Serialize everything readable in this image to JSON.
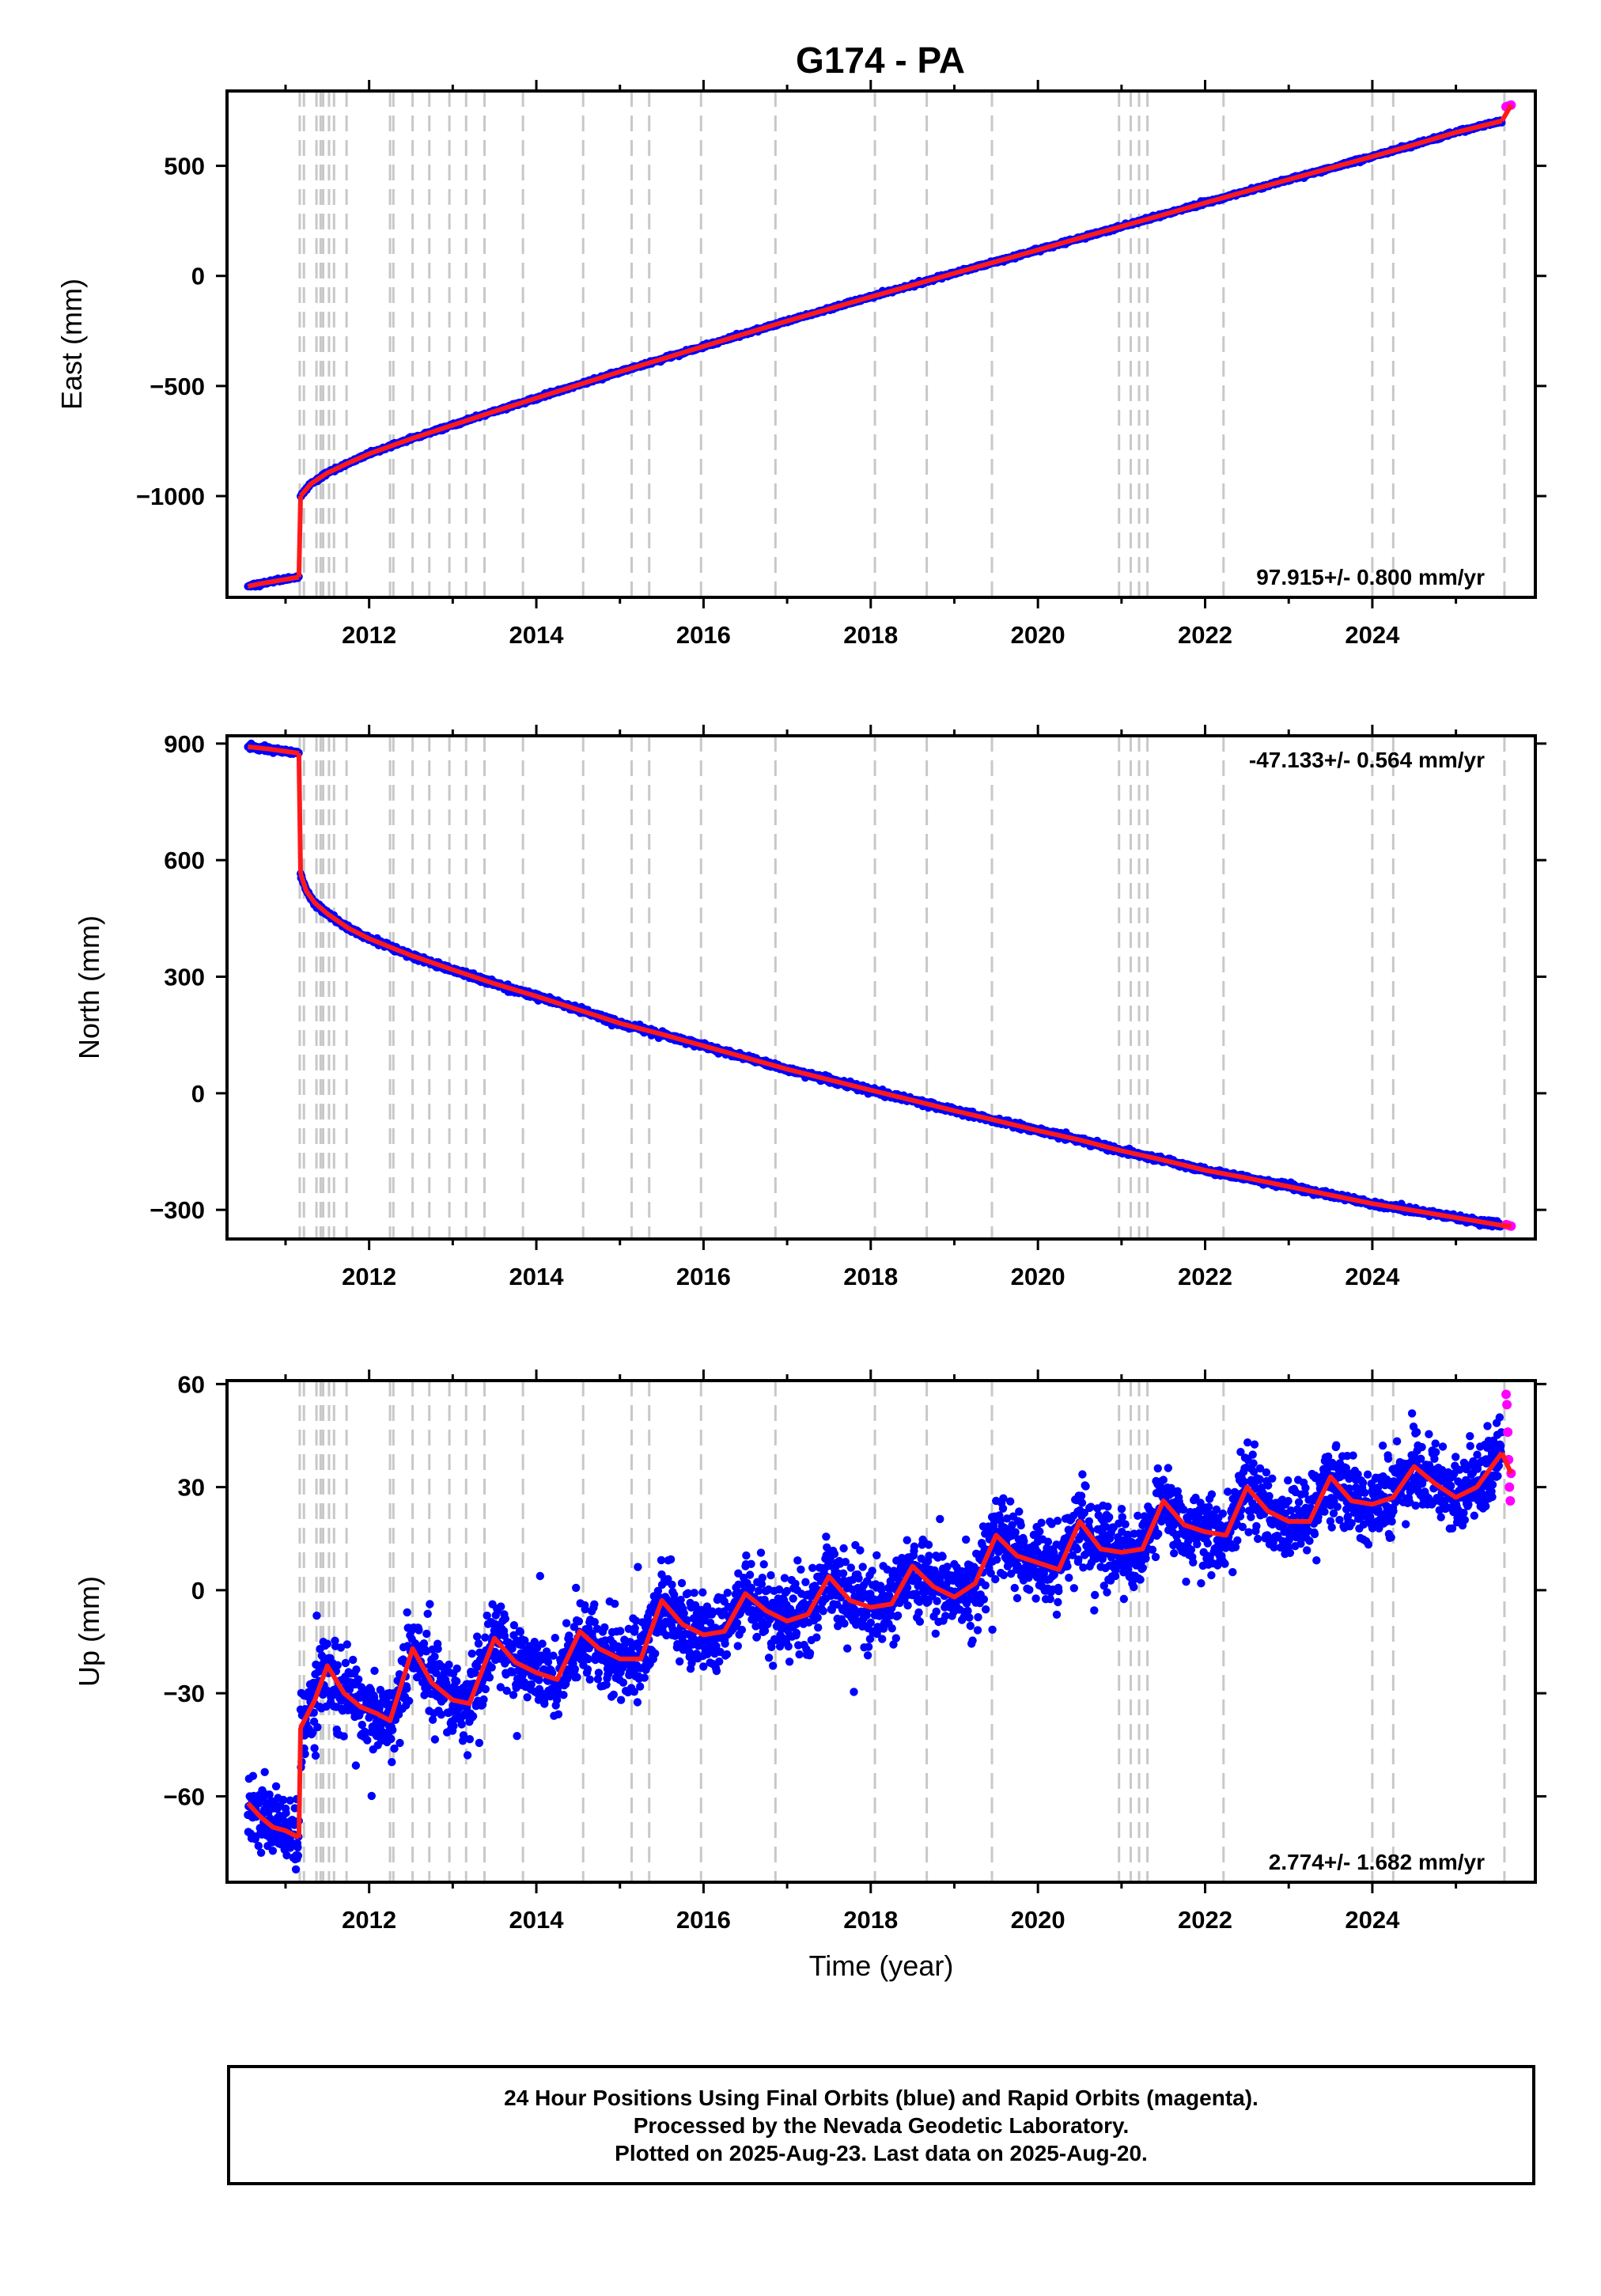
{
  "title": "G174 - PA",
  "colors": {
    "final_orbits": "#0000ff",
    "rapid_orbits": "#ff00ff",
    "model": "#ff1a1a",
    "event_lines": "#c8c8c8",
    "frame": "#000000"
  },
  "event_years": [
    2011.17,
    2011.22,
    2011.37,
    2011.42,
    2011.45,
    2011.52,
    2011.58,
    2011.73,
    2012.25,
    2012.29,
    2012.52,
    2012.72,
    2012.96,
    2013.16,
    2013.38,
    2013.84,
    2014.56,
    2015.14,
    2015.35,
    2015.97,
    2016.86,
    2018.05,
    2018.67,
    2019.45,
    2020.97,
    2021.11,
    2021.21,
    2021.31,
    2022.22,
    2024.0,
    2024.25,
    2025.58
  ],
  "chart_data": [
    {
      "type": "scatter",
      "panel": "east",
      "ylabel": "East (mm)",
      "x_ticks": [
        2012,
        2014,
        2016,
        2018,
        2020,
        2022,
        2024
      ],
      "x_tick_labels": [
        "2012",
        "2014",
        "2016",
        "2018",
        "2020",
        "2022",
        "2024"
      ],
      "y_ticks": [
        -1000,
        -500,
        0,
        500
      ],
      "y_tick_labels": [
        "−1000",
        "−500",
        "0",
        "500"
      ],
      "xlim": [
        2010.3,
        2025.95
      ],
      "ylim": [
        -1460,
        840
      ],
      "rate_text": "97.915+/- 0.800 mm/yr",
      "rate_position": "bottom-right",
      "noise_mm": 3.5,
      "series": [
        {
          "role": "final",
          "x": [
            2010.55,
            2010.7,
            2010.9,
            2011.1,
            2011.16
          ],
          "y": [
            -1410,
            -1398,
            -1385,
            -1372,
            -1368
          ]
        },
        {
          "role": "final",
          "x": [
            2011.18,
            2011.3,
            2011.5,
            2011.75,
            2012.0,
            2012.5,
            2013.0,
            2013.5,
            2014.0,
            2014.5,
            2015.0,
            2015.5,
            2016.0,
            2016.5,
            2017.0,
            2017.5,
            2018.0,
            2018.5,
            2019.0,
            2019.5,
            2020.0,
            2020.5,
            2021.0,
            2021.5,
            2022.0,
            2022.5,
            2023.0,
            2023.5,
            2024.0,
            2024.5,
            2025.0,
            2025.55
          ],
          "y": [
            -1000,
            -945,
            -895,
            -850,
            -808,
            -740,
            -678,
            -615,
            -555,
            -495,
            -435,
            -378,
            -320,
            -262,
            -205,
            -150,
            -95,
            -42,
            12,
            65,
            118,
            172,
            225,
            278,
            332,
            385,
            438,
            490,
            542,
            596,
            652,
            704
          ]
        }
      ],
      "rapid": {
        "x": [
          2025.6,
          2025.63,
          2025.66
        ],
        "y": [
          768,
          772,
          776
        ]
      },
      "model_shift": 0
    },
    {
      "type": "scatter",
      "panel": "north",
      "ylabel": "North (mm)",
      "x_ticks": [
        2012,
        2014,
        2016,
        2018,
        2020,
        2022,
        2024
      ],
      "x_tick_labels": [
        "2012",
        "2014",
        "2016",
        "2018",
        "2020",
        "2022",
        "2024"
      ],
      "y_ticks": [
        -300,
        0,
        300,
        600,
        900
      ],
      "y_tick_labels": [
        "−300",
        "0",
        "300",
        "600",
        "900"
      ],
      "xlim": [
        2010.3,
        2025.95
      ],
      "ylim": [
        -375,
        920
      ],
      "rate_text": "-47.133+/- 0.564 mm/yr",
      "rate_position": "top-right",
      "noise_mm": 3.5,
      "series": [
        {
          "role": "final",
          "x": [
            2010.55,
            2010.8,
            2011.0,
            2011.16
          ],
          "y": [
            892,
            886,
            880,
            875
          ]
        },
        {
          "role": "final",
          "x": [
            2011.18,
            2011.25,
            2011.35,
            2011.5,
            2011.75,
            2012.0,
            2012.5,
            2013.0,
            2013.5,
            2014.0,
            2014.5,
            2015.0,
            2015.5,
            2016.0,
            2016.5,
            2017.0,
            2017.5,
            2018.0,
            2018.5,
            2019.0,
            2019.5,
            2020.0,
            2020.5,
            2021.0,
            2021.5,
            2022.0,
            2022.5,
            2023.0,
            2023.5,
            2024.0,
            2024.5,
            2025.0,
            2025.55
          ],
          "y": [
            565,
            520,
            490,
            462,
            425,
            398,
            355,
            318,
            282,
            250,
            215,
            180,
            152,
            122,
            92,
            62,
            35,
            8,
            -18,
            -45,
            -70,
            -96,
            -120,
            -148,
            -172,
            -198,
            -218,
            -240,
            -262,
            -284,
            -302,
            -320,
            -340
          ]
        }
      ],
      "rapid": {
        "x": [
          2025.6,
          2025.63,
          2025.66
        ],
        "y": [
          -338,
          -340,
          -342
        ]
      },
      "model_shift": 0
    },
    {
      "type": "scatter",
      "panel": "up",
      "ylabel": "Up (mm)",
      "xlabel": "Time (year)",
      "x_ticks": [
        2012,
        2014,
        2016,
        2018,
        2020,
        2022,
        2024
      ],
      "x_tick_labels": [
        "2012",
        "2014",
        "2016",
        "2018",
        "2020",
        "2022",
        "2024"
      ],
      "y_ticks": [
        -60,
        -30,
        0,
        30,
        60
      ],
      "y_tick_labels": [
        "−60",
        "−30",
        "0",
        "30",
        "60"
      ],
      "xlim": [
        2010.3,
        2025.95
      ],
      "ylim": [
        -85,
        61
      ],
      "rate_text": "2.774+/- 1.682 mm/yr",
      "rate_position": "bottom-right",
      "noise_mm": 5.5,
      "series": [
        {
          "role": "final",
          "x": [
            2010.55,
            2010.7,
            2010.85,
            2011.0,
            2011.16
          ],
          "y": [
            -62,
            -66,
            -69,
            -70,
            -72
          ]
        },
        {
          "role": "final",
          "x": [
            2011.18,
            2011.35,
            2011.5,
            2011.7,
            2011.9,
            2012.1,
            2012.25,
            2012.52,
            2012.75,
            2013.0,
            2013.2,
            2013.5,
            2013.75,
            2014.0,
            2014.25,
            2014.52,
            2014.75,
            2015.0,
            2015.25,
            2015.5,
            2015.75,
            2016.0,
            2016.25,
            2016.5,
            2016.75,
            2017.0,
            2017.25,
            2017.5,
            2017.75,
            2018.0,
            2018.25,
            2018.5,
            2018.75,
            2019.0,
            2019.25,
            2019.5,
            2019.75,
            2020.0,
            2020.25,
            2020.5,
            2020.75,
            2021.0,
            2021.25,
            2021.5,
            2021.75,
            2022.0,
            2022.25,
            2022.5,
            2022.75,
            2023.0,
            2023.25,
            2023.5,
            2023.75,
            2024.0,
            2024.25,
            2024.5,
            2024.75,
            2025.0,
            2025.25,
            2025.55
          ],
          "y": [
            -40,
            -32,
            -22,
            -30,
            -34,
            -36,
            -38,
            -17,
            -27,
            -32,
            -33,
            -14,
            -21,
            -24,
            -26,
            -12,
            -17,
            -20,
            -20,
            -3,
            -10,
            -13,
            -12,
            -1,
            -6,
            -9,
            -7,
            4,
            -3,
            -5,
            -4,
            7,
            1,
            -2,
            2,
            16,
            10,
            8,
            6,
            20,
            12,
            11,
            12,
            26,
            19,
            17,
            16,
            30,
            23,
            20,
            20,
            33,
            26,
            25,
            27,
            36,
            31,
            27,
            30,
            40
          ]
        }
      ],
      "rapid": {
        "x": [
          2025.6,
          2025.61,
          2025.62,
          2025.63,
          2025.64,
          2025.65,
          2025.66
        ],
        "y": [
          57,
          54,
          46,
          38,
          30,
          26,
          34
        ]
      },
      "model_shift": 0
    }
  ],
  "caption": {
    "line1": "24 Hour Positions Using Final Orbits (blue) and Rapid Orbits (magenta).",
    "line2": "Processed by the Nevada Geodetic Laboratory.",
    "line3": "Plotted on 2025-Aug-23. Last data on 2025-Aug-20."
  }
}
